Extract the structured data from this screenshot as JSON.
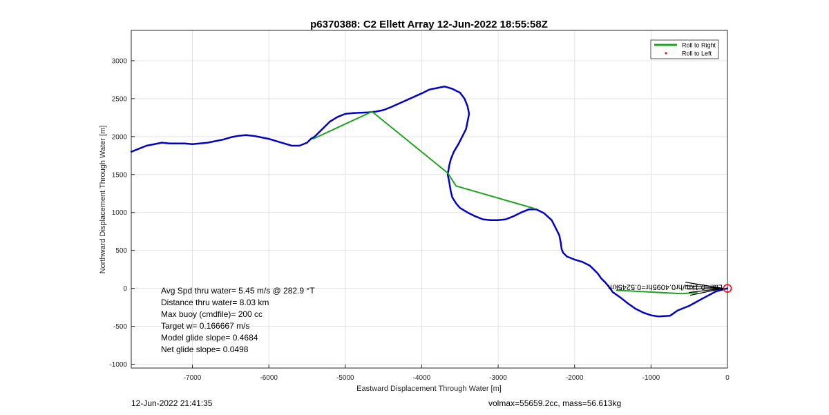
{
  "chart_data": {
    "type": "line",
    "title": "p6370388: C2 Ellett Array 12-Jun-2022 18:55:58Z",
    "xlabel": "Eastward Displacement Through Water [m]",
    "ylabel": "Northward Displacement Through Water [m]",
    "xlim": [
      -7800,
      0
    ],
    "ylim": [
      -1050,
      3400
    ],
    "xticks": [
      -7000,
      -6000,
      -5000,
      -4000,
      -3000,
      -2000,
      -1000,
      0
    ],
    "yticks": [
      -1000,
      -500,
      0,
      500,
      1000,
      1500,
      2000,
      2500,
      3000
    ],
    "grid": true,
    "legend": {
      "location": "top-right",
      "entries": [
        {
          "label": "Roll to Right",
          "color": "#1ca31c",
          "style": "line"
        },
        {
          "label": "Roll to Left",
          "color": "#ff0000",
          "style": "dot"
        }
      ]
    },
    "series": [
      {
        "color": "#0000c8",
        "x": [
          0,
          -150,
          -300,
          -500,
          -650,
          -750,
          -900,
          -1000,
          -1100,
          -1200,
          -1300,
          -1400,
          -1500,
          -1550,
          -1600,
          -1650,
          -1700,
          -1800,
          -1900,
          -2000,
          -2100,
          -2150,
          -2170,
          -2180,
          -2200,
          -2250,
          -2300,
          -2400,
          -2500,
          -2600,
          -2700,
          -2800,
          -2900,
          -3000,
          -3100,
          -3200,
          -3300,
          -3400,
          -3500,
          -3550,
          -3600,
          -3620,
          -3640,
          -3660,
          -3650,
          -3640,
          -3620,
          -3580,
          -3520,
          -3470,
          -3420,
          -3400,
          -3380,
          -3400,
          -3440,
          -3500,
          -3600,
          -3700,
          -3750,
          -3900,
          -4000,
          -4200,
          -4400,
          -4500,
          -4600,
          -4700,
          -4900,
          -5000,
          -5100,
          -5200,
          -5300,
          -5350,
          -5400,
          -5450,
          -5500,
          -5600,
          -5700,
          -5800,
          -5900,
          -6000,
          -6200,
          -6300,
          -6400,
          -6500,
          -6600,
          -6700,
          -6800,
          -7000,
          -7100,
          -7200,
          -7300,
          -7400,
          -7600,
          -7800
        ],
        "y": [
          0,
          -40,
          -120,
          -230,
          -290,
          -360,
          -370,
          -355,
          -320,
          -270,
          -200,
          -120,
          -50,
          20,
          80,
          130,
          200,
          300,
          350,
          380,
          420,
          470,
          520,
          600,
          700,
          800,
          900,
          990,
          1040,
          1040,
          1000,
          950,
          910,
          900,
          900,
          910,
          950,
          1000,
          1060,
          1120,
          1200,
          1280,
          1400,
          1500,
          1560,
          1620,
          1700,
          1800,
          1900,
          2000,
          2100,
          2200,
          2300,
          2400,
          2500,
          2580,
          2630,
          2660,
          2650,
          2620,
          2570,
          2480,
          2390,
          2350,
          2330,
          2320,
          2310,
          2300,
          2260,
          2200,
          2100,
          2050,
          2000,
          1970,
          1920,
          1880,
          1880,
          1910,
          1940,
          1970,
          2010,
          2020,
          2010,
          1990,
          1960,
          1940,
          1920,
          1900,
          1910,
          1910,
          1910,
          1920,
          1880,
          1800
        ]
      },
      {
        "name": "Roll to Right",
        "color": "#1ca31c",
        "x": [
          -5420,
          -4650,
          -3660,
          -3550,
          -2520
        ],
        "y": [
          1970,
          2330,
          1520,
          1350,
          1050
        ]
      },
      {
        "name": "Roll to Right",
        "color": "#1ca31c",
        "x": [
          -1450,
          -600,
          -400
        ],
        "y": [
          -25,
          -70,
          -55
        ]
      }
    ],
    "annotations": [
      {
        "text": "Avg Spd thru water=  5.45 m/s @ 282.9 °T"
      },
      {
        "text": "Distance thru water=  8.03 km"
      },
      {
        "text": "Max buoy (cmdfile)= 200 cc"
      },
      {
        "text": "Target w= 0.166667 m/s"
      },
      {
        "text": "Model glide slope= 0.4684"
      },
      {
        "text": "Net glide slope= 0.0498"
      }
    ],
    "mirrored_label": "Lat: -0.1km/hr0.4095hr=0.5245km",
    "marker": {
      "x": 0,
      "y": 0,
      "color": "#ff0000"
    }
  },
  "footer": {
    "left": "12-Jun-2022 21:41:35",
    "right": "volmax=55659.2cc, mass=56.613kg"
  }
}
